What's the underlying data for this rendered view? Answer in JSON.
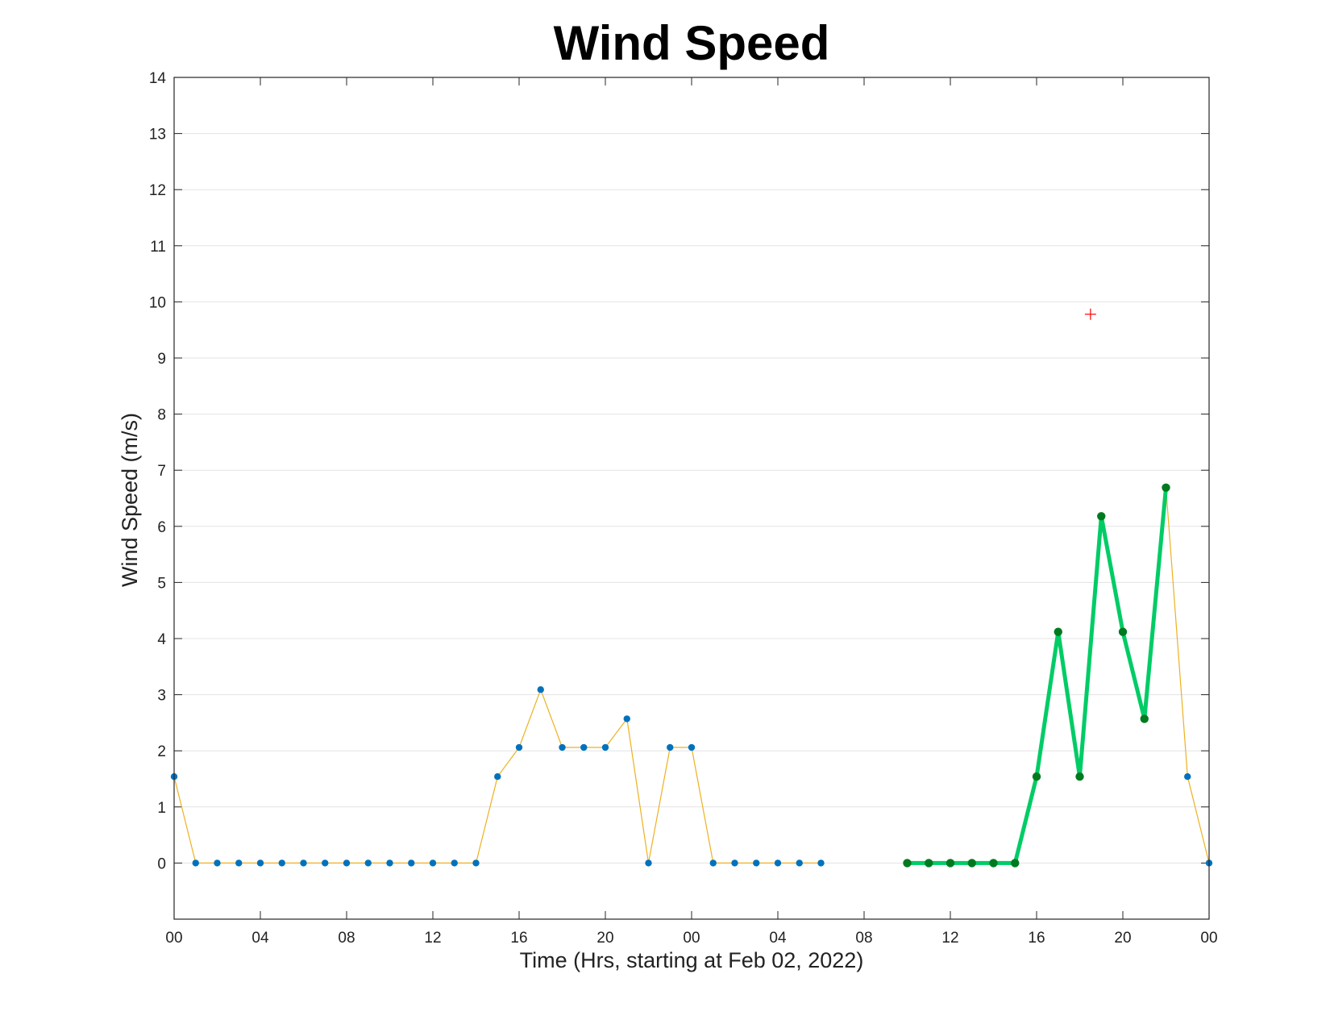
{
  "chart_data": {
    "type": "line",
    "title": "Wind Speed",
    "xlabel": "Time (Hrs, starting at Feb 02, 2022)",
    "ylabel": "Wind Speed (m/s)",
    "ylim": [
      -1,
      14
    ],
    "xlim": [
      "2022-02-02 00:00",
      "2022-02-04 00:00"
    ],
    "grid": "horizontal",
    "y_ticks": [
      "0",
      "1",
      "2",
      "3",
      "4",
      "5",
      "6",
      "7",
      "8",
      "9",
      "10",
      "11",
      "12",
      "13",
      "14"
    ],
    "x_ticks": [
      {
        "t": "2022-02-02 00:00",
        "label": "00"
      },
      {
        "t": "2022-02-02 04:00",
        "label": "04"
      },
      {
        "t": "2022-02-02 08:00",
        "label": "08"
      },
      {
        "t": "2022-02-02 12:00",
        "label": "12"
      },
      {
        "t": "2022-02-02 16:00",
        "label": "16"
      },
      {
        "t": "2022-02-02 20:00",
        "label": "20"
      },
      {
        "t": "2022-02-03 00:00",
        "label": "00"
      },
      {
        "t": "2022-02-03 04:00",
        "label": "04"
      },
      {
        "t": "2022-02-03 08:00",
        "label": "08"
      },
      {
        "t": "2022-02-03 12:00",
        "label": "12"
      },
      {
        "t": "2022-02-03 16:00",
        "label": "16"
      },
      {
        "t": "2022-02-03 20:00",
        "label": "20"
      },
      {
        "t": "2022-02-04 00:00",
        "label": "00"
      }
    ],
    "series": [
      {
        "color": "#edb120",
        "marker_color": "#0072bd",
        "segments": [
          {
            "x": [
              "2022-02-02 00:00",
              "2022-02-02 01:00",
              "2022-02-02 02:00",
              "2022-02-02 03:00",
              "2022-02-02 04:00",
              "2022-02-02 05:00",
              "2022-02-02 06:00",
              "2022-02-02 07:00",
              "2022-02-02 08:00",
              "2022-02-02 09:00",
              "2022-02-02 10:00",
              "2022-02-02 11:00",
              "2022-02-02 12:00",
              "2022-02-02 13:00",
              "2022-02-02 14:00",
              "2022-02-02 15:00",
              "2022-02-02 16:00",
              "2022-02-02 17:00",
              "2022-02-02 18:00",
              "2022-02-02 19:00",
              "2022-02-02 20:00",
              "2022-02-02 21:00",
              "2022-02-02 22:00",
              "2022-02-02 23:00",
              "2022-02-03 00:00",
              "2022-02-03 01:00",
              "2022-02-03 02:00",
              "2022-02-03 03:00",
              "2022-02-03 04:00",
              "2022-02-03 05:00",
              "2022-02-03 06:00"
            ],
            "y": [
              1.54,
              0,
              0,
              0,
              0,
              0,
              0,
              0,
              0,
              0,
              0,
              0,
              0,
              0,
              0,
              1.54,
              2.06,
              3.09,
              2.06,
              2.06,
              2.06,
              2.57,
              0,
              2.06,
              2.06,
              0,
              0,
              0,
              0,
              0,
              0
            ]
          },
          {
            "x": [
              "2022-02-03 10:00",
              "2022-02-03 11:00",
              "2022-02-03 12:00",
              "2022-02-03 13:00",
              "2022-02-03 14:00",
              "2022-02-03 15:00",
              "2022-02-03 16:00",
              "2022-02-03 17:00",
              "2022-02-03 18:00",
              "2022-02-03 19:00",
              "2022-02-03 20:00",
              "2022-02-03 21:00",
              "2022-02-03 22:00",
              "2022-02-03 23:00",
              "2022-02-04 00:00"
            ],
            "y": [
              0,
              0,
              0,
              0,
              0,
              0,
              1.54,
              4.12,
              1.54,
              6.18,
              4.12,
              2.57,
              6.69,
              1.54,
              0
            ]
          }
        ]
      },
      {
        "color": "#00cc66",
        "marker_color": "#007a1f",
        "segments": [
          {
            "x": [
              "2022-02-03 10:00",
              "2022-02-03 11:00",
              "2022-02-03 12:00",
              "2022-02-03 13:00",
              "2022-02-03 14:00",
              "2022-02-03 15:00",
              "2022-02-03 16:00",
              "2022-02-03 17:00",
              "2022-02-03 18:00",
              "2022-02-03 19:00",
              "2022-02-03 20:00",
              "2022-02-03 21:00",
              "2022-02-03 22:00"
            ],
            "y": [
              0,
              0,
              0,
              0,
              0,
              0,
              1.54,
              4.12,
              1.54,
              6.18,
              4.12,
              2.57,
              6.69
            ]
          }
        ]
      }
    ],
    "annotation_points": [
      {
        "x": "2022-02-03 18:30",
        "y": 9.78,
        "marker": "+",
        "color": "#ff0000"
      }
    ]
  }
}
